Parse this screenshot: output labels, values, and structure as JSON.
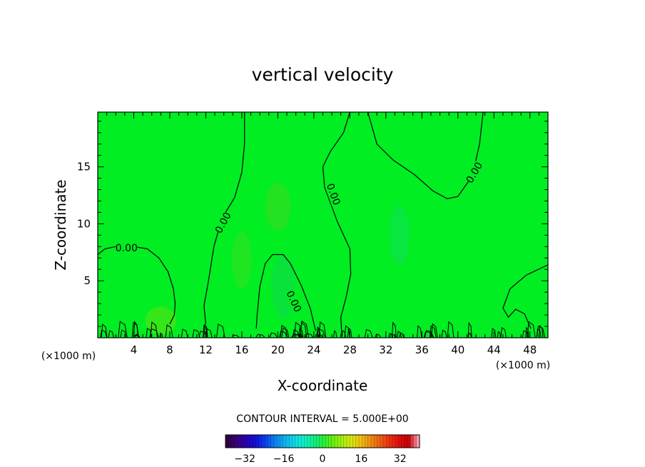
{
  "chart_data": {
    "type": "contour",
    "title": "vertical velocity",
    "xlabel": "X-coordinate",
    "ylabel": "Z-coordinate",
    "x_unit": "(×1000 m)",
    "z_unit": "(×1000 m)",
    "xlim": [
      0,
      50
    ],
    "ylim": [
      0,
      19.8
    ],
    "xticks": [
      4,
      8,
      12,
      16,
      20,
      24,
      28,
      32,
      36,
      40,
      44,
      48
    ],
    "yticks": [
      5,
      10,
      15
    ],
    "contour_interval_text": "CONTOUR INTERVAL = 5.000E+00",
    "contour_level_label": "0.00",
    "colorbar": {
      "range": [
        -40,
        40
      ],
      "ticks": [
        -32,
        -16,
        0,
        16,
        32
      ],
      "colors": [
        "#300040",
        "#3a007a",
        "#2a00b0",
        "#1010d8",
        "#0a40f0",
        "#0a80f0",
        "#10b0f0",
        "#10d8e8",
        "#10f0c8",
        "#10f090",
        "#20f040",
        "#60f010",
        "#a0f010",
        "#d8e810",
        "#f0c010",
        "#f09010",
        "#f06010",
        "#f03010",
        "#e01010",
        "#c80000",
        "#ff9ab0"
      ]
    },
    "fields": {
      "background_color": "#00ee22"
    },
    "contours": [
      {
        "level": 0,
        "points": [
          [
            0,
            7.3
          ],
          [
            0.8,
            7.8
          ],
          [
            2,
            8.0
          ],
          [
            4,
            8.0
          ],
          [
            5.5,
            7.8
          ],
          [
            6.8,
            7.0
          ],
          [
            7.8,
            5.8
          ],
          [
            8.4,
            4.3
          ],
          [
            8.6,
            3.0
          ],
          [
            8.5,
            2.0
          ],
          [
            8.0,
            1.2
          ]
        ]
      },
      {
        "level": 0,
        "points": [
          [
            16.3,
            19.8
          ],
          [
            16.3,
            17.0
          ],
          [
            16.0,
            14.5
          ],
          [
            15.2,
            12.3
          ],
          [
            13.8,
            10.5
          ],
          [
            12.9,
            8.0
          ],
          [
            12.3,
            5.0
          ],
          [
            11.8,
            2.8
          ],
          [
            12.0,
            1.2
          ]
        ]
      },
      {
        "level": 0,
        "points": [
          [
            28.0,
            19.8
          ],
          [
            27.3,
            18.0
          ],
          [
            25.8,
            16.3
          ],
          [
            25.0,
            15.0
          ],
          [
            25.2,
            13.2
          ],
          [
            26.6,
            10.2
          ],
          [
            28.0,
            7.8
          ],
          [
            28.1,
            5.6
          ],
          [
            27.6,
            3.6
          ],
          [
            27.0,
            1.8
          ],
          [
            27.1,
            0.2
          ]
        ]
      },
      {
        "level": 0,
        "points": [
          [
            30.0,
            19.8
          ],
          [
            31.0,
            17.0
          ],
          [
            32.8,
            15.6
          ],
          [
            35.2,
            14.3
          ],
          [
            37.2,
            12.9
          ],
          [
            38.8,
            12.2
          ],
          [
            40.0,
            12.4
          ],
          [
            41.6,
            14.2
          ],
          [
            42.4,
            17.0
          ],
          [
            42.8,
            19.8
          ]
        ]
      },
      {
        "level": 0,
        "points": [
          [
            24.2,
            0.6
          ],
          [
            23.6,
            2.6
          ],
          [
            22.6,
            4.6
          ],
          [
            21.4,
            6.5
          ],
          [
            20.6,
            7.3
          ],
          [
            19.4,
            7.3
          ],
          [
            18.6,
            6.5
          ],
          [
            18.0,
            4.5
          ],
          [
            17.7,
            2.0
          ],
          [
            17.6,
            0.8
          ]
        ]
      },
      {
        "level": 0,
        "points": [
          [
            50.0,
            6.4
          ],
          [
            47.6,
            5.5
          ],
          [
            45.8,
            4.3
          ],
          [
            45.0,
            2.6
          ],
          [
            45.6,
            1.8
          ],
          [
            46.4,
            2.5
          ],
          [
            47.4,
            2.1
          ],
          [
            48.1,
            0.8
          ]
        ]
      }
    ]
  }
}
